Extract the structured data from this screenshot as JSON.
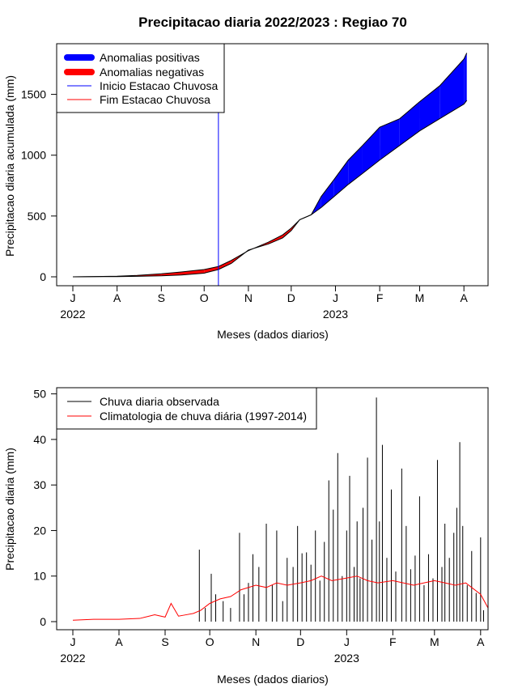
{
  "figure": {
    "title": "Precipitacao diaria 2022/2023 : Regiao 70"
  },
  "chart_data": [
    {
      "type": "area",
      "name": "accumulated",
      "title": "Precipitacao diaria 2022/2023 : Regiao 70",
      "xlabel": "Meses (dados diarios)",
      "ylabel": "Precipitacao diaria acumulada (mm)",
      "x_start": "2022-07-01",
      "x_end": "2023-04-06",
      "ylim": [
        0,
        1850
      ],
      "month_ticks": [
        "J",
        "A",
        "S",
        "O",
        "N",
        "D",
        "J",
        "F",
        "M",
        "A"
      ],
      "month_tick_dates": [
        "2022-07-01",
        "2022-08-01",
        "2022-09-01",
        "2022-10-01",
        "2022-11-01",
        "2022-12-01",
        "2023-01-01",
        "2023-02-01",
        "2023-03-01",
        "2023-04-01"
      ],
      "year_labels": [
        {
          "text": "2022",
          "date": "2022-07-01"
        },
        {
          "text": "2023",
          "date": "2023-01-01"
        }
      ],
      "y_ticks": [
        0,
        500,
        1000,
        1500
      ],
      "rainy_season_start": "2022-10-11",
      "grid": false,
      "legend_position": "top-left",
      "legend": [
        {
          "label": "Anomalias positivas",
          "color": "#0000ff",
          "style": "thick"
        },
        {
          "label": "Anomalias negativas",
          "color": "#ff0000",
          "style": "thick"
        },
        {
          "label": "Inicio Estacao Chuvosa",
          "color": "#0000ff",
          "style": "thin"
        },
        {
          "label": "Fim Estacao Chuvosa",
          "color": "#ff0000",
          "style": "thin"
        }
      ],
      "observed_cumulative": {
        "dates": [
          "2022-07-01",
          "2022-08-01",
          "2022-08-15",
          "2022-09-01",
          "2022-09-15",
          "2022-10-01",
          "2022-10-11",
          "2022-10-20",
          "2022-11-01",
          "2022-11-15",
          "2022-11-25",
          "2022-12-01",
          "2022-12-07",
          "2022-12-15",
          "2022-12-22",
          "2022-12-31",
          "2023-01-10",
          "2023-01-20",
          "2023-02-01",
          "2023-02-15",
          "2023-03-01",
          "2023-03-15",
          "2023-04-01",
          "2023-04-03"
        ],
        "values": [
          0,
          2,
          4,
          8,
          15,
          30,
          60,
          110,
          220,
          270,
          320,
          380,
          470,
          510,
          660,
          800,
          960,
          1080,
          1230,
          1300,
          1440,
          1570,
          1790,
          1840
        ]
      },
      "climatology_cumulative": {
        "dates": [
          "2022-07-01",
          "2022-08-01",
          "2022-08-15",
          "2022-09-01",
          "2022-09-15",
          "2022-10-01",
          "2022-10-11",
          "2022-10-20",
          "2022-11-01",
          "2022-11-15",
          "2022-11-25",
          "2022-12-01",
          "2022-12-07",
          "2022-12-15",
          "2022-12-22",
          "2022-12-31",
          "2023-01-10",
          "2023-01-20",
          "2023-02-01",
          "2023-02-15",
          "2023-03-01",
          "2023-03-15",
          "2023-04-01",
          "2023-04-03"
        ],
        "values": [
          0,
          5,
          12,
          25,
          40,
          60,
          85,
          135,
          215,
          285,
          345,
          400,
          470,
          510,
          570,
          660,
          760,
          850,
          960,
          1080,
          1200,
          1300,
          1420,
          1450
        ]
      }
    },
    {
      "type": "bar",
      "name": "daily",
      "xlabel": "Meses (dados diarios)",
      "ylabel": "Precipitacao diaria (mm)",
      "x_start": "2022-07-01",
      "x_end": "2023-04-06",
      "ylim": [
        0,
        51
      ],
      "y_ticks": [
        0,
        10,
        20,
        30,
        40,
        50
      ],
      "month_ticks": [
        "J",
        "A",
        "S",
        "O",
        "N",
        "D",
        "J",
        "F",
        "M",
        "A"
      ],
      "month_tick_dates": [
        "2022-07-01",
        "2022-08-01",
        "2022-09-01",
        "2022-10-01",
        "2022-11-01",
        "2022-12-01",
        "2023-01-01",
        "2023-02-01",
        "2023-03-01",
        "2023-04-01"
      ],
      "year_labels": [
        {
          "text": "2022",
          "date": "2022-07-01"
        },
        {
          "text": "2023",
          "date": "2023-01-01"
        }
      ],
      "grid": false,
      "legend_position": "top-left",
      "legend": [
        {
          "label": "Chuva diaria observada",
          "color": "#000000"
        },
        {
          "label": "Climatologia de chuva diária (1997-2014)",
          "color": "#ff0000"
        }
      ],
      "series": [
        {
          "name": "Chuva diaria observada",
          "color": "#000000",
          "points": [
            [
              "2022-09-24",
              15.8
            ],
            [
              "2022-09-28",
              3
            ],
            [
              "2022-10-02",
              10.5
            ],
            [
              "2022-10-05",
              6
            ],
            [
              "2022-10-10",
              4.5
            ],
            [
              "2022-10-15",
              3
            ],
            [
              "2022-10-21",
              19.5
            ],
            [
              "2022-10-24",
              6
            ],
            [
              "2022-10-27",
              8.5
            ],
            [
              "2022-10-30",
              14.8
            ],
            [
              "2022-11-03",
              12
            ],
            [
              "2022-11-08",
              21.5
            ],
            [
              "2022-11-12",
              8
            ],
            [
              "2022-11-15",
              20
            ],
            [
              "2022-11-19",
              4.5
            ],
            [
              "2022-11-22",
              14
            ],
            [
              "2022-11-26",
              12
            ],
            [
              "2022-11-29",
              21
            ],
            [
              "2022-12-02",
              15
            ],
            [
              "2022-12-05",
              15.2
            ],
            [
              "2022-12-08",
              12.5
            ],
            [
              "2022-12-11",
              20
            ],
            [
              "2022-12-14",
              9
            ],
            [
              "2022-12-17",
              17.5
            ],
            [
              "2022-12-20",
              31
            ],
            [
              "2022-12-23",
              24.6
            ],
            [
              "2022-12-26",
              37
            ],
            [
              "2022-12-29",
              10
            ],
            [
              "2023-01-01",
              20
            ],
            [
              "2023-01-03",
              32
            ],
            [
              "2023-01-06",
              12
            ],
            [
              "2023-01-08",
              22
            ],
            [
              "2023-01-10",
              9.5
            ],
            [
              "2023-01-12",
              25
            ],
            [
              "2023-01-15",
              36
            ],
            [
              "2023-01-18",
              18
            ],
            [
              "2023-01-21",
              49.2
            ],
            [
              "2023-01-23",
              22
            ],
            [
              "2023-01-25",
              38.8
            ],
            [
              "2023-01-28",
              14
            ],
            [
              "2023-01-31",
              29
            ],
            [
              "2023-02-03",
              11
            ],
            [
              "2023-02-07",
              33.6
            ],
            [
              "2023-02-10",
              21
            ],
            [
              "2023-02-13",
              11.5
            ],
            [
              "2023-02-16",
              14.5
            ],
            [
              "2023-02-19",
              27.5
            ],
            [
              "2023-02-22",
              8
            ],
            [
              "2023-02-25",
              14.8
            ],
            [
              "2023-02-28",
              9.5
            ],
            [
              "2023-03-03",
              35.5
            ],
            [
              "2023-03-06",
              12
            ],
            [
              "2023-03-08",
              21.5
            ],
            [
              "2023-03-11",
              14
            ],
            [
              "2023-03-14",
              19.5
            ],
            [
              "2023-03-16",
              25
            ],
            [
              "2023-03-18",
              39.4
            ],
            [
              "2023-03-20",
              21
            ],
            [
              "2023-03-23",
              8
            ],
            [
              "2023-03-26",
              15.5
            ],
            [
              "2023-03-29",
              6.3
            ],
            [
              "2023-04-01",
              18.5
            ],
            [
              "2023-04-03",
              2.5
            ]
          ]
        },
        {
          "name": "Climatologia de chuva diária (1997-2014)",
          "color": "#ff0000",
          "dates": [
            "2022-07-01",
            "2022-07-15",
            "2022-08-01",
            "2022-08-15",
            "2022-08-25",
            "2022-09-01",
            "2022-09-05",
            "2022-09-10",
            "2022-09-15",
            "2022-09-20",
            "2022-09-25",
            "2022-10-01",
            "2022-10-08",
            "2022-10-15",
            "2022-10-22",
            "2022-11-01",
            "2022-11-08",
            "2022-11-15",
            "2022-11-22",
            "2022-12-01",
            "2022-12-08",
            "2022-12-15",
            "2022-12-22",
            "2022-12-31",
            "2023-01-08",
            "2023-01-15",
            "2023-01-22",
            "2023-02-01",
            "2023-02-08",
            "2023-02-15",
            "2023-02-22",
            "2023-03-01",
            "2023-03-08",
            "2023-03-15",
            "2023-03-22",
            "2023-04-01",
            "2023-04-06"
          ],
          "values": [
            0.3,
            0.5,
            0.5,
            0.7,
            1.5,
            1.0,
            4.0,
            1.2,
            1.5,
            1.8,
            2.5,
            4.0,
            5.0,
            5.5,
            7.0,
            8.0,
            7.5,
            8.5,
            8.0,
            8.5,
            9.0,
            10.0,
            9.0,
            9.5,
            10.0,
            9.0,
            8.5,
            9.0,
            8.5,
            8.0,
            8.5,
            9.0,
            8.5,
            8.0,
            8.5,
            6.0,
            3.0
          ]
        }
      ]
    }
  ]
}
